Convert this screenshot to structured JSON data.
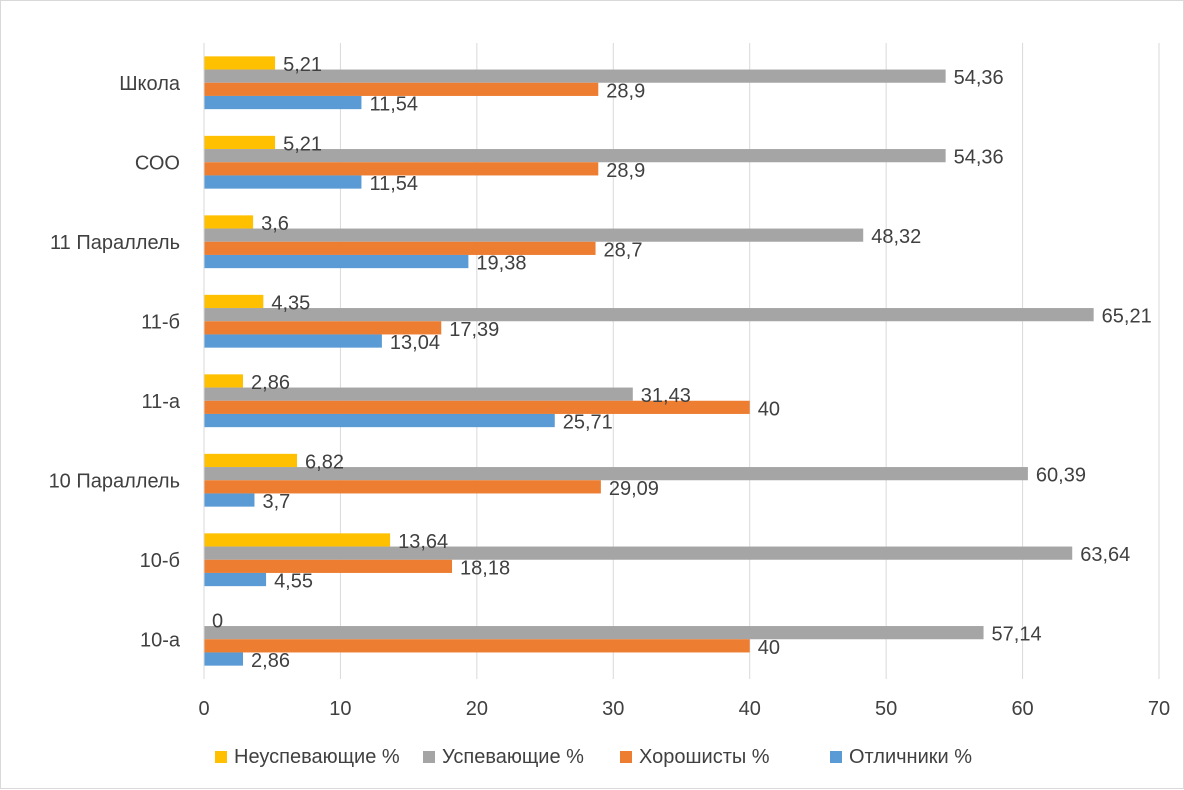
{
  "chart_data": {
    "type": "bar",
    "orientation": "horizontal",
    "categories": [
      "Школа",
      "СОО",
      "11 Параллель",
      "11-б",
      "11-а",
      "10 Параллель",
      "10-б",
      "10-а"
    ],
    "series": [
      {
        "name": "Неуспевающие %",
        "color": "#ffc000",
        "values": [
          5.21,
          5.21,
          3.6,
          4.35,
          2.86,
          6.82,
          13.64,
          0
        ]
      },
      {
        "name": "Успевающие %",
        "color": "#a5a5a5",
        "values": [
          54.36,
          54.36,
          48.32,
          65.21,
          31.43,
          60.39,
          63.64,
          57.14
        ]
      },
      {
        "name": "Хорошисты %",
        "color": "#ed7d31",
        "values": [
          28.9,
          28.9,
          28.7,
          17.39,
          40,
          29.09,
          18.18,
          40
        ]
      },
      {
        "name": "Отличники %",
        "color": "#5b9bd5",
        "values": [
          11.54,
          11.54,
          19.38,
          13.04,
          25.71,
          3.7,
          4.55,
          2.86
        ]
      }
    ],
    "data_labels": [
      [
        "5,21",
        "5,21",
        "3,6",
        "4,35",
        "2,86",
        "6,82",
        "13,64",
        "0"
      ],
      [
        "54,36",
        "54,36",
        "48,32",
        "65,21",
        "31,43",
        "60,39",
        "63,64",
        "57,14"
      ],
      [
        "28,9",
        "28,9",
        "28,7",
        "17,39",
        "40",
        "29,09",
        "18,18",
        "40"
      ],
      [
        "11,54",
        "11,54",
        "19,38",
        "13,04",
        "25,71",
        "3,7",
        "4,55",
        "2,86"
      ]
    ],
    "x_ticks": [
      "0",
      "10",
      "20",
      "30",
      "40",
      "50",
      "60",
      "70"
    ],
    "xlim": [
      0,
      70
    ],
    "title": "",
    "xlabel": "",
    "ylabel": "",
    "grid": "vertical",
    "legend_position": "bottom"
  }
}
